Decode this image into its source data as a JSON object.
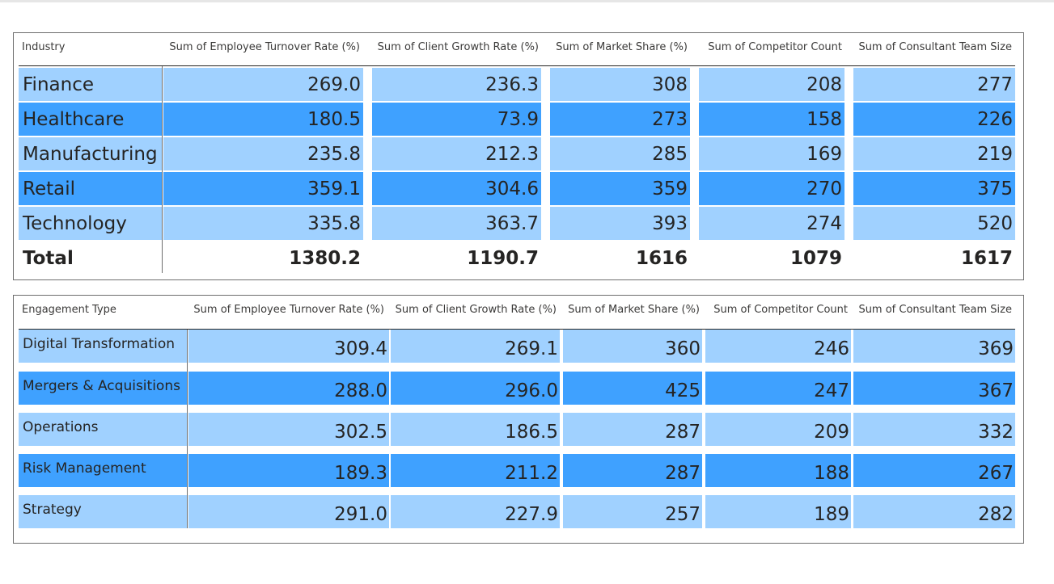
{
  "colors": {
    "row_light": "#a0d1ff",
    "row_dark": "#3fa1ff",
    "text": "#252423",
    "border": "#6e6e6e"
  },
  "industry_table": {
    "headers": [
      "Industry",
      "Sum of Employee Turnover Rate (%)",
      "Sum of Client Growth Rate (%)",
      "Sum of Market Share (%)",
      "Sum of Competitor Count",
      "Sum of Consultant Team Size"
    ],
    "rows": [
      {
        "label": "Finance",
        "values": [
          "269.0",
          "236.3",
          "308",
          "208",
          "277"
        ],
        "shade": "light"
      },
      {
        "label": "Healthcare",
        "values": [
          "180.5",
          "73.9",
          "273",
          "158",
          "226"
        ],
        "shade": "dark"
      },
      {
        "label": "Manufacturing",
        "values": [
          "235.8",
          "212.3",
          "285",
          "169",
          "219"
        ],
        "shade": "light"
      },
      {
        "label": "Retail",
        "values": [
          "359.1",
          "304.6",
          "359",
          "270",
          "375"
        ],
        "shade": "dark"
      },
      {
        "label": "Technology",
        "values": [
          "335.8",
          "363.7",
          "393",
          "274",
          "520"
        ],
        "shade": "light"
      }
    ],
    "total": {
      "label": "Total",
      "values": [
        "1380.2",
        "1190.7",
        "1616",
        "1079",
        "1617"
      ]
    }
  },
  "engagement_table": {
    "headers": [
      "Engagement Type",
      "Sum of Employee Turnover Rate (%)",
      "Sum of Client Growth Rate (%)",
      "Sum of Market Share (%)",
      "Sum of Competitor Count",
      "Sum of Consultant Team Size"
    ],
    "rows": [
      {
        "label": "Digital Transformation",
        "values": [
          "309.4",
          "269.1",
          "360",
          "246",
          "369"
        ],
        "shade": "light"
      },
      {
        "label": "Mergers & Acquisitions",
        "values": [
          "288.0",
          "296.0",
          "425",
          "247",
          "367"
        ],
        "shade": "dark"
      },
      {
        "label": "Operations",
        "values": [
          "302.5",
          "186.5",
          "287",
          "209",
          "332"
        ],
        "shade": "light"
      },
      {
        "label": "Risk Management",
        "values": [
          "189.3",
          "211.2",
          "287",
          "188",
          "267"
        ],
        "shade": "dark"
      },
      {
        "label": "Strategy",
        "values": [
          "291.0",
          "227.9",
          "257",
          "189",
          "282"
        ],
        "shade": "light"
      }
    ]
  }
}
